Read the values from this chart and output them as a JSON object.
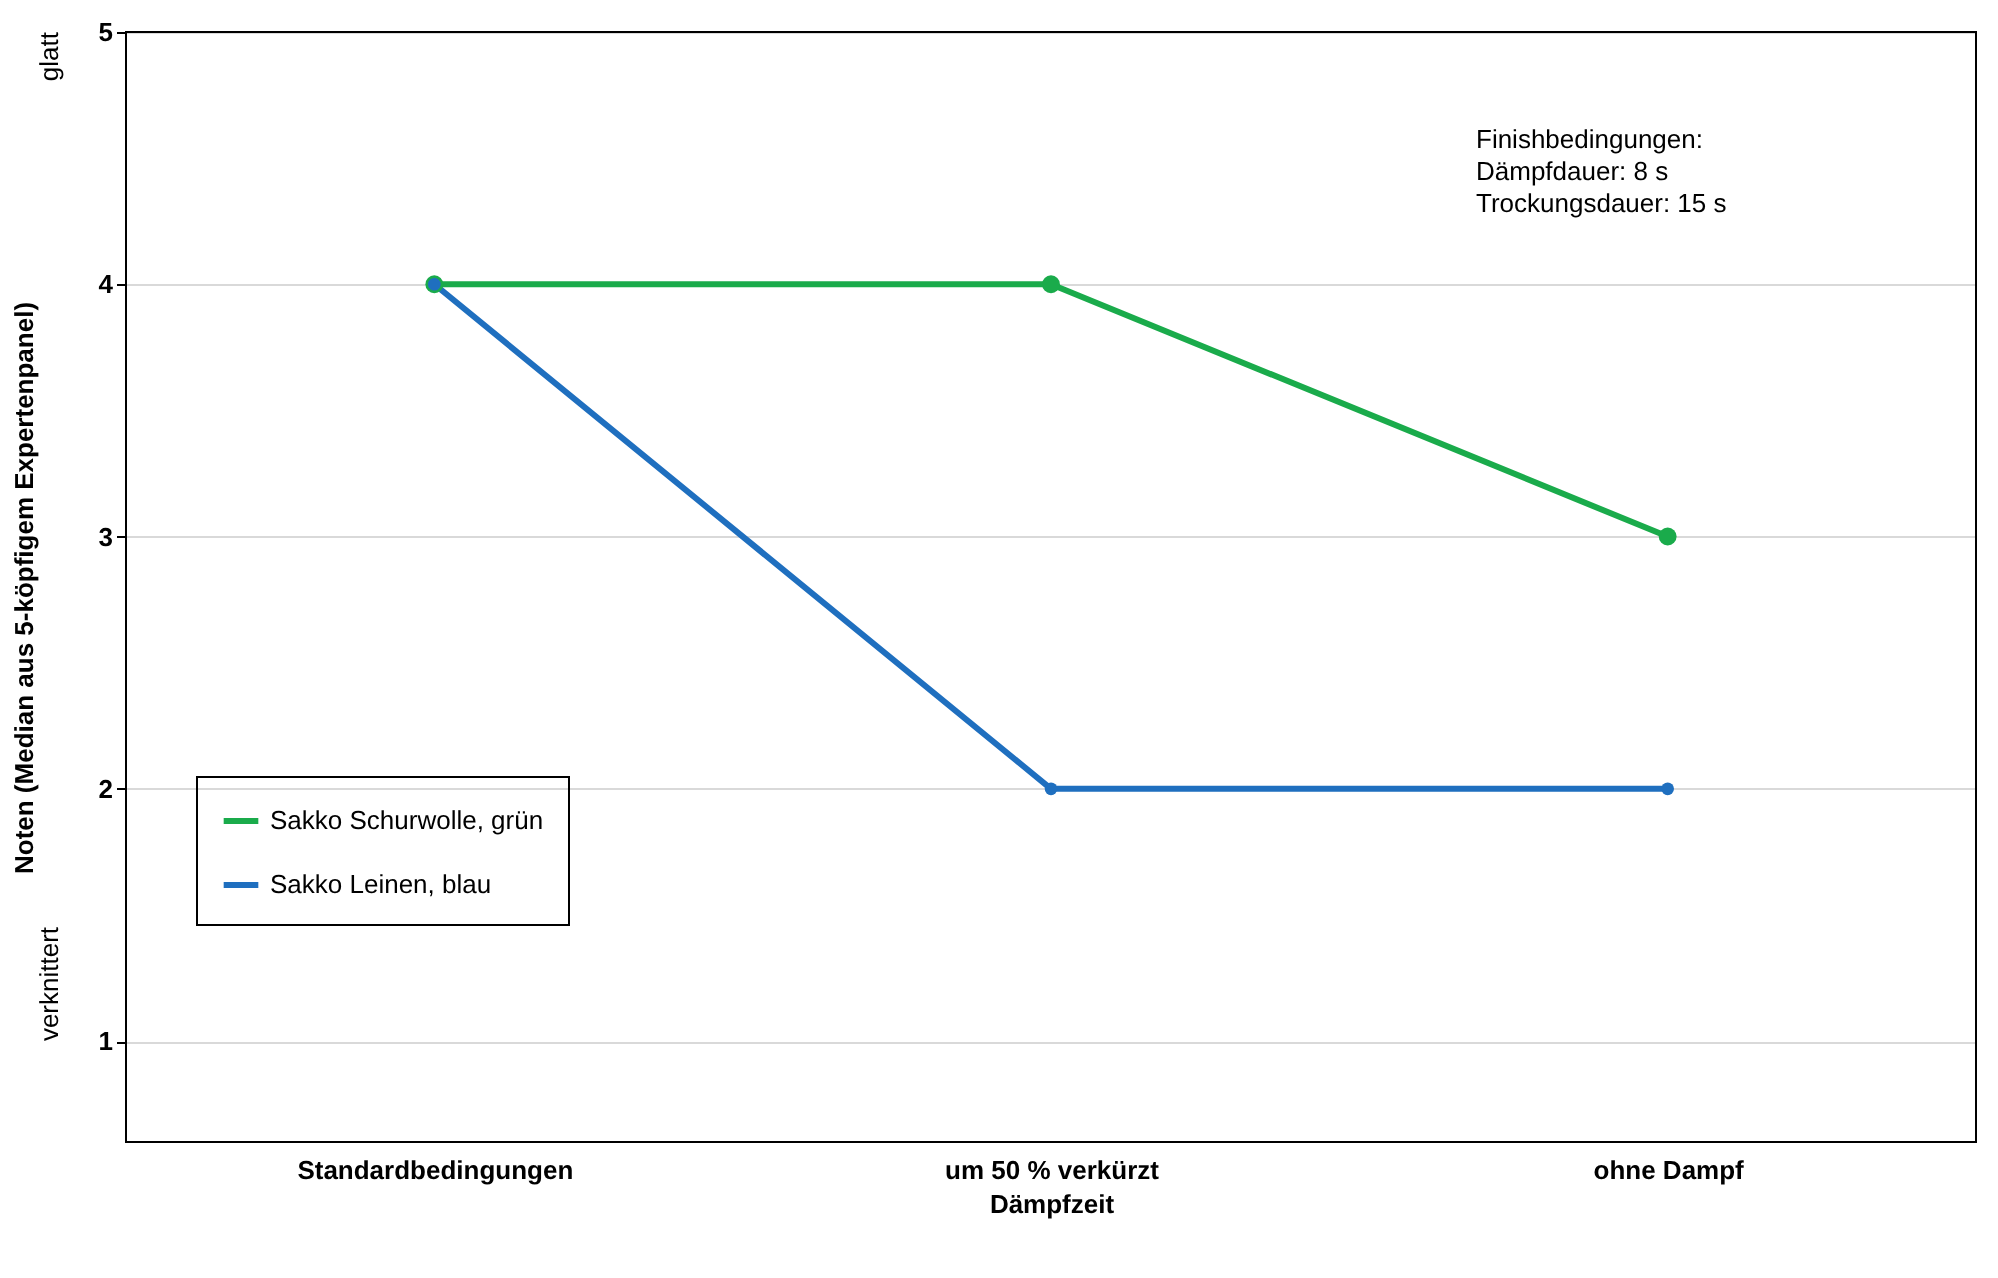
{
  "chart_data": {
    "type": "line",
    "xlabel": "Dämpfzeit",
    "ylabel": "Noten (Median aus 5-köpfigem Expertenpanel)",
    "categories": [
      "Standardbedingungen",
      "um 50 % verkürzt",
      "ohne Dampf"
    ],
    "series": [
      {
        "name": "Sakko Schurwolle, grün",
        "color": "#1aab4b",
        "values": [
          4,
          4,
          3
        ]
      },
      {
        "name": "Sakko Leinen, blau",
        "color": "#1f6fbf",
        "values": [
          4,
          2,
          2
        ]
      }
    ],
    "ylim": [
      0.6,
      5
    ],
    "yticks": [
      1,
      2,
      3,
      4,
      5
    ],
    "grid": "y",
    "legend": "left",
    "marker": "circle",
    "line_style": "solid",
    "annotations": [
      "glatt",
      "verknittert",
      "Finishbedingungen:\nDämpfdauer: 8 s\nTrockungsdauer: 15 s"
    ]
  }
}
